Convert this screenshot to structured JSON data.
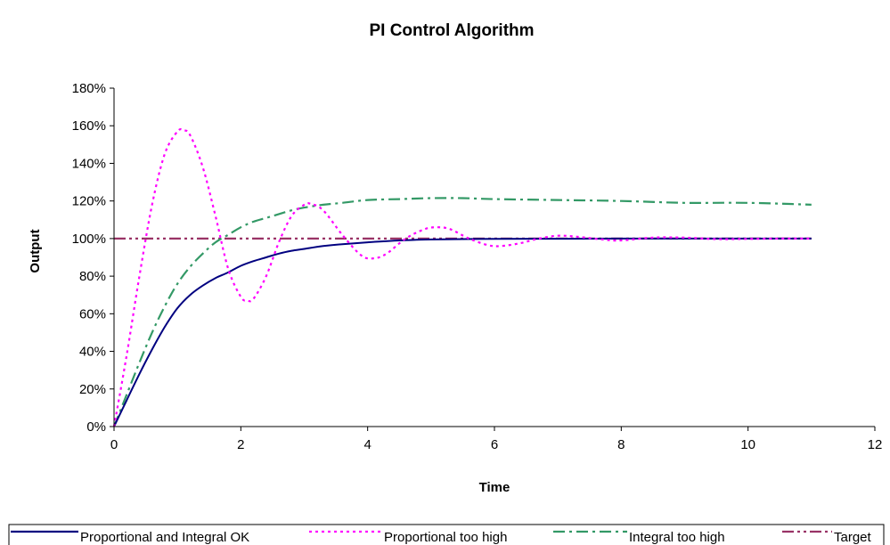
{
  "chart_data": {
    "type": "line",
    "title": "PI Control Algorithm",
    "xlabel": "Time",
    "ylabel": "Output",
    "xlim": [
      0,
      12
    ],
    "ylim": [
      0,
      1.8
    ],
    "x_ticks": [
      "0",
      "2",
      "4",
      "6",
      "8",
      "10",
      "12"
    ],
    "y_ticks": [
      "0%",
      "20%",
      "40%",
      "60%",
      "80%",
      "100%",
      "120%",
      "140%",
      "160%",
      "180%"
    ],
    "grid": false,
    "legend_position": "bottom",
    "series": [
      {
        "name": "Proportional and Integral OK",
        "color": "#000080",
        "style": "solid",
        "x": [
          0,
          0.2,
          0.4,
          0.6,
          0.8,
          1.0,
          1.2,
          1.4,
          1.6,
          1.8,
          2.0,
          2.2,
          2.4,
          2.6,
          2.8,
          3.0,
          3.3,
          3.6,
          4.0,
          4.5,
          5.0,
          5.5,
          6.0,
          7.0,
          8.0,
          9.0,
          10.0,
          11.0
        ],
        "y": [
          0,
          0.14,
          0.28,
          0.41,
          0.53,
          0.63,
          0.7,
          0.75,
          0.79,
          0.82,
          0.855,
          0.88,
          0.9,
          0.92,
          0.935,
          0.945,
          0.96,
          0.97,
          0.98,
          0.99,
          0.995,
          0.997,
          0.998,
          0.999,
          1.0,
          1.0,
          1.0,
          1.0
        ]
      },
      {
        "name": "Proportional too high",
        "color": "#FF00FF",
        "style": "dotted",
        "x": [
          0,
          0.2,
          0.4,
          0.6,
          0.8,
          1.0,
          1.1,
          1.2,
          1.4,
          1.6,
          1.8,
          2.0,
          2.1,
          2.2,
          2.4,
          2.6,
          2.8,
          3.0,
          3.1,
          3.3,
          3.6,
          3.9,
          4.1,
          4.3,
          4.6,
          4.9,
          5.1,
          5.3,
          5.6,
          5.9,
          6.1,
          6.4,
          6.7,
          7.0,
          7.3,
          7.7,
          8.0,
          8.5,
          9.0,
          9.5,
          10.0,
          10.5,
          11.0
        ],
        "y": [
          0,
          0.38,
          0.8,
          1.18,
          1.45,
          1.57,
          1.575,
          1.55,
          1.38,
          1.12,
          0.84,
          0.69,
          0.67,
          0.68,
          0.8,
          0.98,
          1.12,
          1.18,
          1.185,
          1.15,
          1.02,
          0.91,
          0.895,
          0.92,
          1.0,
          1.05,
          1.06,
          1.05,
          1.0,
          0.965,
          0.96,
          0.975,
          1.0,
          1.015,
          1.01,
          0.995,
          0.99,
          1.005,
          1.005,
          0.997,
          0.998,
          1.0,
          1.0
        ]
      },
      {
        "name": "Integral too high",
        "color": "#339966",
        "style": "dashdot",
        "x": [
          0,
          0.2,
          0.4,
          0.6,
          0.8,
          1.0,
          1.2,
          1.4,
          1.6,
          1.8,
          2.0,
          2.2,
          2.4,
          2.6,
          2.8,
          3.0,
          3.3,
          3.6,
          4.0,
          4.5,
          5.0,
          5.5,
          6.0,
          7.0,
          8.0,
          9.0,
          10.0,
          11.0
        ],
        "y": [
          0,
          0.17,
          0.34,
          0.5,
          0.64,
          0.76,
          0.85,
          0.92,
          0.98,
          1.02,
          1.06,
          1.09,
          1.11,
          1.13,
          1.15,
          1.165,
          1.18,
          1.19,
          1.205,
          1.21,
          1.215,
          1.215,
          1.21,
          1.205,
          1.2,
          1.19,
          1.19,
          1.18
        ]
      },
      {
        "name": "Target",
        "color": "#993366",
        "style": "dashdotdot",
        "x": [
          0,
          11
        ],
        "y": [
          1.0,
          1.0
        ]
      }
    ]
  }
}
